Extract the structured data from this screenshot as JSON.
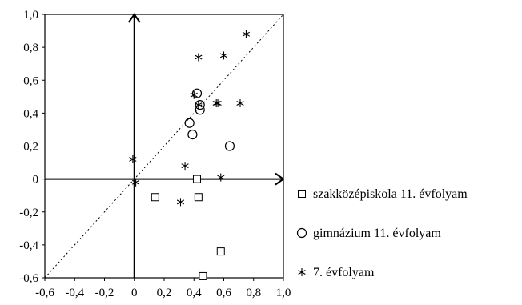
{
  "chart_data": {
    "type": "scatter",
    "title": "",
    "xlabel": "",
    "ylabel": "",
    "xlim": [
      -0.6,
      1.0
    ],
    "ylim": [
      -0.6,
      1.0
    ],
    "x_ticks": [
      "-0,6",
      "-0,4",
      "-0,2",
      "0",
      "0,2",
      "0,4",
      "0,6",
      "0,8",
      "1,0"
    ],
    "y_ticks": [
      "1,0",
      "0,8",
      "0,6",
      "0,4",
      "0,2",
      "0",
      "-0,2",
      "-0,4",
      "-0,6"
    ],
    "diagonal": "dotted y = x",
    "series": [
      {
        "name": "szakközépiskola 11. évfolyam",
        "marker": "square",
        "points": [
          [
            0.14,
            -0.11
          ],
          [
            0.42,
            0.0
          ],
          [
            0.43,
            -0.11
          ],
          [
            0.58,
            -0.44
          ],
          [
            0.46,
            -0.59
          ]
        ]
      },
      {
        "name": "gimnázium 11. évfolyam",
        "marker": "circle",
        "points": [
          [
            0.42,
            0.52
          ],
          [
            0.44,
            0.45
          ],
          [
            0.44,
            0.42
          ],
          [
            0.37,
            0.34
          ],
          [
            0.39,
            0.27
          ],
          [
            0.64,
            0.2
          ]
        ]
      },
      {
        "name": "7. évfolyam",
        "marker": "star",
        "points": [
          [
            0.75,
            0.88
          ],
          [
            0.43,
            0.74
          ],
          [
            0.6,
            0.75
          ],
          [
            0.4,
            0.51
          ],
          [
            0.43,
            0.45
          ],
          [
            0.55,
            0.46
          ],
          [
            0.56,
            0.46
          ],
          [
            0.71,
            0.46
          ],
          [
            -0.01,
            0.12
          ],
          [
            0.34,
            0.08
          ],
          [
            0.58,
            0.01
          ],
          [
            0.01,
            -0.02
          ],
          [
            0.31,
            -0.14
          ]
        ]
      }
    ],
    "legend_position": "right"
  }
}
